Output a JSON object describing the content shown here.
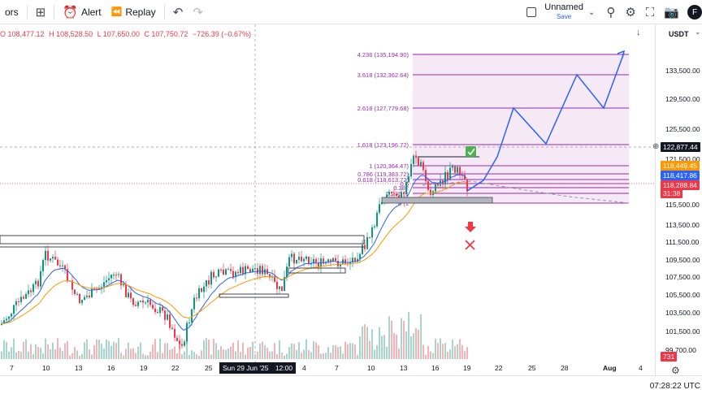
{
  "toolbar": {
    "indicators_label": "ors",
    "alert_label": "Alert",
    "replay_label": "Replay",
    "layout_name": "Unnamed",
    "layout_status": "Save",
    "avatar_letter": "F"
  },
  "ohlc": {
    "open": "O 108,477.12",
    "high": "H 108,528.50",
    "low": "L 107,650.00",
    "close": "C 107,750.72",
    "change": "−726.39 (−0.67%)"
  },
  "price_scale": {
    "currency": "USDT",
    "labels": [
      "133,500.00",
      "129,500.00",
      "125,500.00",
      "121,500.00",
      "115,500.00",
      "113,500.00",
      "111,500.00",
      "109,500.00",
      "107,500.00",
      "105,500.00",
      "103,500.00",
      "101,500.00",
      "99,700.00"
    ],
    "crosshair_price": "122,877.44",
    "badge_ema_orange": "118,449.45",
    "badge_ema_blue": "118,417.86",
    "badge_last": "118,288.84",
    "badge_countdown": "31:38",
    "badge_volume": "731"
  },
  "fib_levels": [
    {
      "label": "4.236 (135,194.90)"
    },
    {
      "label": "3.618 (132,362.64)"
    },
    {
      "label": "2.618 (127,779.68)"
    },
    {
      "label": "1.618 (123,196.72)"
    },
    {
      "label": "1 (120,364.47)"
    },
    {
      "label": "0.786 (119,383.72)"
    },
    {
      "label": "0.618 (118,613.72)"
    },
    {
      "label": "0.5"
    },
    {
      "label": "0.382"
    },
    {
      "label": "0.236 (1"
    },
    {
      "label": "0 (1"
    }
  ],
  "time_axis": {
    "labels": [
      "7",
      "10",
      "13",
      "16",
      "19",
      "22",
      "25",
      "4",
      "7",
      "10",
      "13",
      "16",
      "19",
      "22",
      "25",
      "28",
      "Aug",
      "4"
    ],
    "crosshair_date": "Sun 29 Jun '25",
    "crosshair_time": "12:00"
  },
  "status": {
    "clock": "07:28:22 UTC"
  },
  "colors": {
    "up": "#089981",
    "down": "#f23645",
    "fib": "#9c27b0",
    "projection": "#2962ff"
  }
}
